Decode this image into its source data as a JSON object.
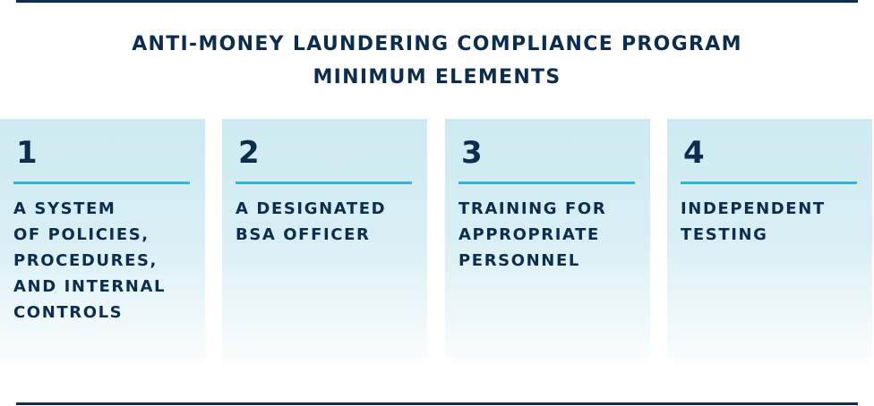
{
  "title": {
    "line1": "ANTI-MONEY LAUNDERING COMPLIANCE PROGRAM",
    "line2": "MINIMUM ELEMENTS"
  },
  "elements": [
    {
      "number": "1",
      "label_lines": [
        "A SYSTEM",
        "OF POLICIES,",
        "PROCEDURES,",
        "AND INTERNAL",
        "CONTROLS"
      ]
    },
    {
      "number": "2",
      "label_lines": [
        "A DESIGNATED",
        "BSA OFFICER"
      ]
    },
    {
      "number": "3",
      "label_lines": [
        "TRAINING FOR",
        "APPROPRIATE",
        "PERSONNEL"
      ]
    },
    {
      "number": "4",
      "label_lines": [
        "INDEPENDENT",
        "TESTING"
      ]
    }
  ],
  "colors": {
    "navy": "#0d2d4f",
    "accent_line": "#2ab7d9",
    "card_top": "#cfeaf2"
  }
}
